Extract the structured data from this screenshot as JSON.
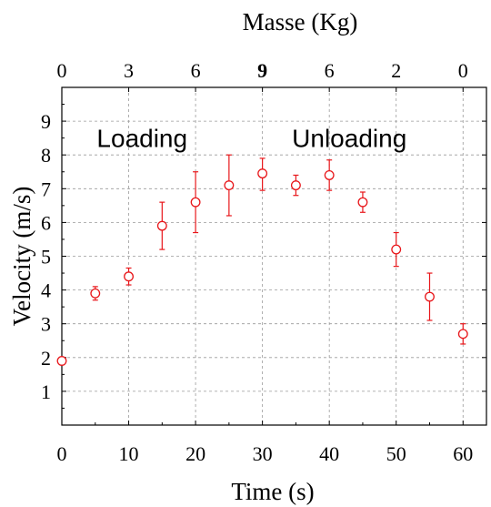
{
  "chart_data": {
    "type": "scatter",
    "title": "",
    "xlabel": "Time (s)",
    "ylabel": "Velocity (m/s)",
    "top_axis_label": "Masse (Kg)",
    "xlim": [
      0,
      63.5
    ],
    "ylim": [
      0,
      10
    ],
    "x_ticks": [
      0,
      10,
      20,
      30,
      40,
      50,
      60
    ],
    "y_ticks": [
      1,
      2,
      3,
      4,
      5,
      6,
      7,
      8,
      9
    ],
    "top_ticks": [
      {
        "x": 0,
        "label": "0",
        "bold": false
      },
      {
        "x": 10,
        "label": "3",
        "bold": false
      },
      {
        "x": 20,
        "label": "6",
        "bold": false
      },
      {
        "x": 30,
        "label": "9",
        "bold": true
      },
      {
        "x": 40,
        "label": "6",
        "bold": false
      },
      {
        "x": 50,
        "label": "2",
        "bold": false
      },
      {
        "x": 60,
        "label": "0",
        "bold": false
      }
    ],
    "grid": true,
    "color": "#e8161a",
    "annotations": [
      {
        "text": "Loading",
        "x": 12,
        "y": 8.5
      },
      {
        "text": "Unloading",
        "x": 43,
        "y": 8.5
      }
    ],
    "series": [
      {
        "x": [
          0,
          5,
          10,
          15,
          20,
          25,
          30,
          35,
          40,
          45,
          50,
          55,
          60
        ],
        "y": [
          1.9,
          3.9,
          4.4,
          5.9,
          6.6,
          7.1,
          7.45,
          7.1,
          7.4,
          6.6,
          5.2,
          3.8,
          2.7
        ],
        "err_low": [
          0.1,
          0.2,
          0.25,
          0.7,
          0.9,
          0.9,
          0.5,
          0.3,
          0.45,
          0.3,
          0.5,
          0.7,
          0.3
        ],
        "err_high": [
          0.1,
          0.2,
          0.25,
          0.7,
          0.9,
          0.9,
          0.45,
          0.3,
          0.45,
          0.3,
          0.5,
          0.7,
          0.3
        ]
      }
    ]
  }
}
